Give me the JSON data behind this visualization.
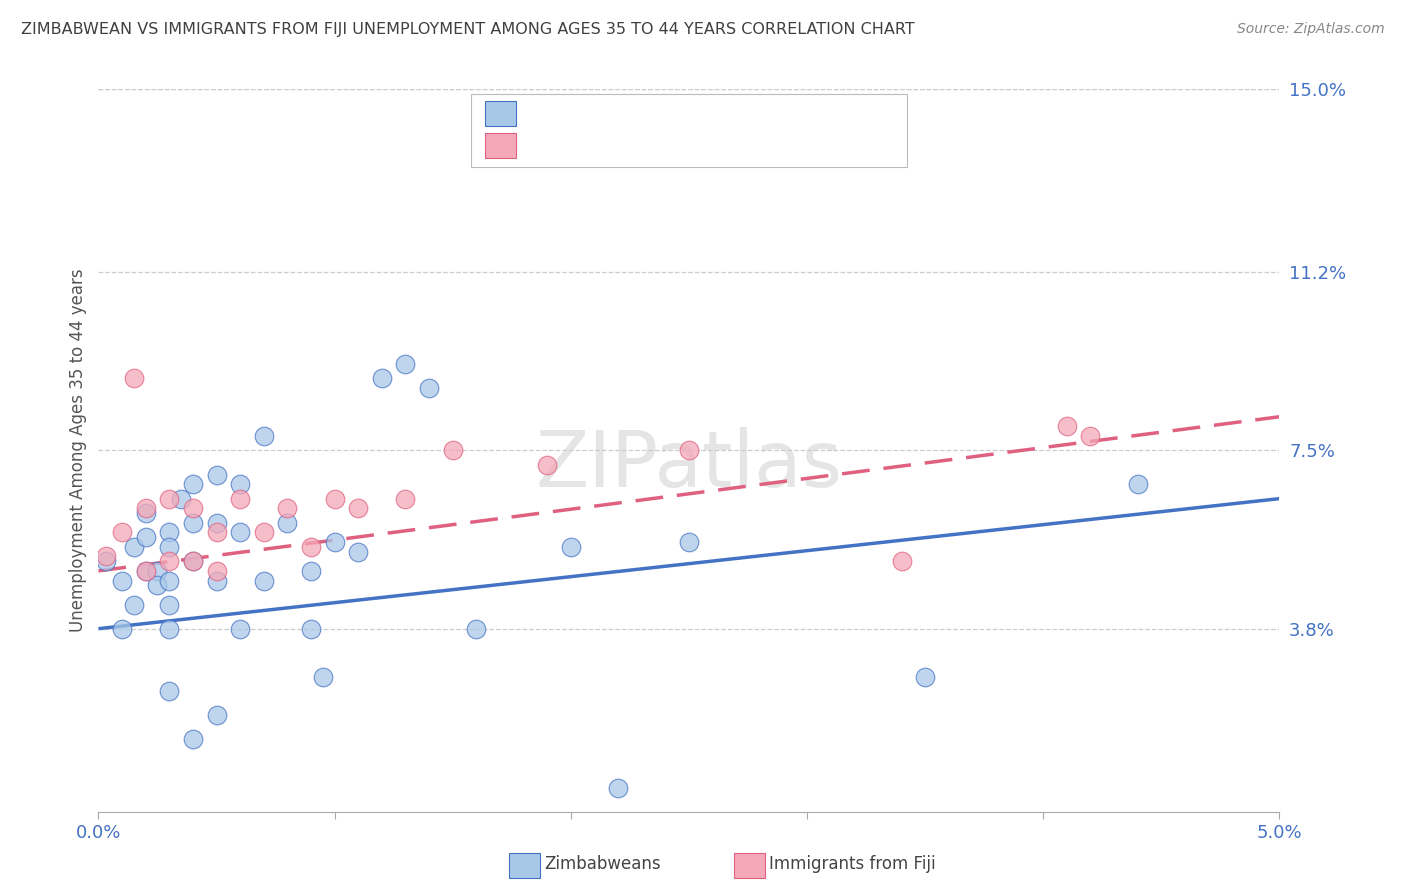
{
  "title": "ZIMBABWEAN VS IMMIGRANTS FROM FIJI UNEMPLOYMENT AMONG AGES 35 TO 44 YEARS CORRELATION CHART",
  "source": "Source: ZipAtlas.com",
  "ylabel": "Unemployment Among Ages 35 to 44 years",
  "xlim": [
    0.0,
    0.05
  ],
  "ylim": [
    0.0,
    0.15
  ],
  "xticks": [
    0.0,
    0.01,
    0.02,
    0.03,
    0.04,
    0.05
  ],
  "xtick_labels": [
    "0.0%",
    "",
    "",
    "",
    "",
    "5.0%"
  ],
  "ytick_labels_right": [
    "3.8%",
    "7.5%",
    "11.2%",
    "15.0%"
  ],
  "ytick_vals_right": [
    0.038,
    0.075,
    0.112,
    0.15
  ],
  "zim_color": "#a8c8e8",
  "fiji_color": "#f4a8b8",
  "zim_line_color": "#4472c4",
  "fiji_line_color": "#e06080",
  "legend_label_zim": "Zimbabweans",
  "legend_label_fiji": "Immigrants from Fiji",
  "axis_label_color": "#4472c4",
  "zim_x": [
    0.0003,
    0.001,
    0.001,
    0.0015,
    0.0015,
    0.002,
    0.002,
    0.002,
    0.0025,
    0.0025,
    0.003,
    0.003,
    0.003,
    0.003,
    0.003,
    0.003,
    0.0035,
    0.004,
    0.004,
    0.004,
    0.004,
    0.005,
    0.005,
    0.005,
    0.005,
    0.006,
    0.006,
    0.006,
    0.007,
    0.007,
    0.008,
    0.009,
    0.009,
    0.0095,
    0.01,
    0.011,
    0.012,
    0.013,
    0.014,
    0.016,
    0.02,
    0.022,
    0.025,
    0.035,
    0.044
  ],
  "zim_y": [
    0.052,
    0.048,
    0.038,
    0.055,
    0.043,
    0.062,
    0.057,
    0.05,
    0.05,
    0.047,
    0.058,
    0.055,
    0.048,
    0.043,
    0.038,
    0.025,
    0.065,
    0.068,
    0.06,
    0.052,
    0.015,
    0.07,
    0.06,
    0.048,
    0.02,
    0.068,
    0.058,
    0.038,
    0.078,
    0.048,
    0.06,
    0.05,
    0.038,
    0.028,
    0.056,
    0.054,
    0.09,
    0.093,
    0.088,
    0.038,
    0.055,
    0.005,
    0.056,
    0.028,
    0.068
  ],
  "fiji_x": [
    0.0003,
    0.001,
    0.0015,
    0.002,
    0.002,
    0.003,
    0.003,
    0.004,
    0.004,
    0.005,
    0.005,
    0.006,
    0.007,
    0.008,
    0.009,
    0.01,
    0.011,
    0.013,
    0.015,
    0.019,
    0.025,
    0.034,
    0.041,
    0.042
  ],
  "fiji_y": [
    0.053,
    0.058,
    0.09,
    0.063,
    0.05,
    0.065,
    0.052,
    0.063,
    0.052,
    0.058,
    0.05,
    0.065,
    0.058,
    0.063,
    0.055,
    0.065,
    0.063,
    0.065,
    0.075,
    0.072,
    0.075,
    0.052,
    0.08,
    0.078
  ],
  "zim_trend_x0": 0.0,
  "zim_trend_y0": 0.038,
  "zim_trend_x1": 0.05,
  "zim_trend_y1": 0.065,
  "fiji_trend_x0": 0.0,
  "fiji_trend_y0": 0.05,
  "fiji_trend_x1": 0.05,
  "fiji_trend_y1": 0.082
}
